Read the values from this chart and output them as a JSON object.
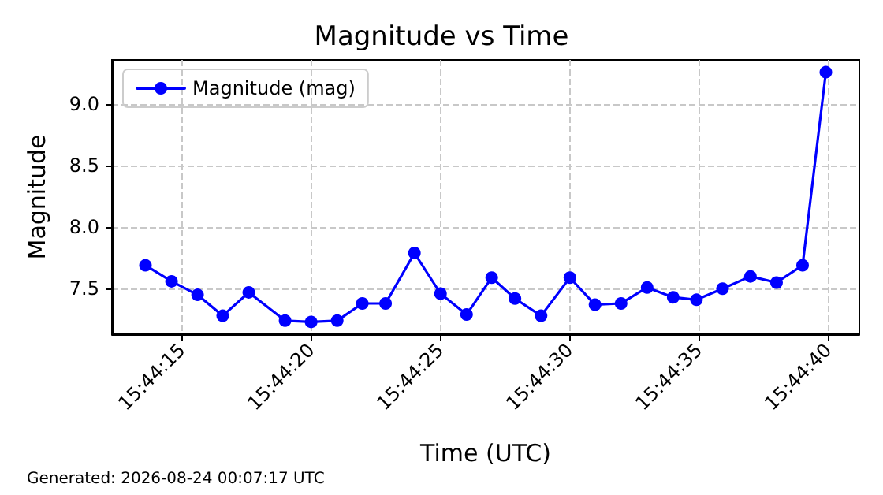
{
  "chart_data": {
    "type": "line",
    "title": "Magnitude vs Time",
    "xlabel": "Time (UTC)",
    "ylabel": "Magnitude",
    "annotations": [
      "Generated: 2026-08-24 00:07:17 UTC"
    ],
    "x": [
      15.73711,
      15.73739,
      15.73767,
      15.73794,
      15.73822,
      15.73861,
      15.73889,
      15.73917,
      15.73944,
      15.73969,
      15.74,
      15.74028,
      15.74056,
      15.74083,
      15.74108,
      15.74136,
      15.74167,
      15.74194,
      15.74222,
      15.7425,
      15.74278,
      15.74303,
      15.74331,
      15.74361,
      15.74389,
      15.74417,
      15.74442
    ],
    "series": [
      {
        "name": "Magnitude (mag)",
        "color": "#0000ff",
        "values": [
          7.69,
          7.56,
          7.45,
          7.28,
          7.47,
          7.24,
          7.23,
          7.24,
          7.38,
          7.38,
          7.79,
          7.46,
          7.29,
          7.59,
          7.42,
          7.28,
          7.59,
          7.37,
          7.38,
          7.51,
          7.43,
          7.41,
          7.5,
          7.6,
          7.55,
          7.69,
          9.26
        ]
      }
    ],
    "xlim": [
      15.73675,
      15.74478
    ],
    "xticks": [
      {
        "value": 15.7375,
        "label": "15:44:15"
      },
      {
        "value": 15.738889,
        "label": "15:44:20"
      },
      {
        "value": 15.740278,
        "label": "15:44:25"
      },
      {
        "value": 15.741667,
        "label": "15:44:30"
      },
      {
        "value": 15.743056,
        "label": "15:44:35"
      },
      {
        "value": 15.744444,
        "label": "15:44:40"
      }
    ],
    "ylim": [
      7.13,
      9.36
    ],
    "yticks": [
      7.5,
      {
        "value": 8,
        "label": "8.0"
      },
      8.5,
      {
        "value": 9,
        "label": "9.0"
      }
    ],
    "grid": true,
    "legend": "top left",
    "marker": "circle",
    "line_style": "solid"
  }
}
